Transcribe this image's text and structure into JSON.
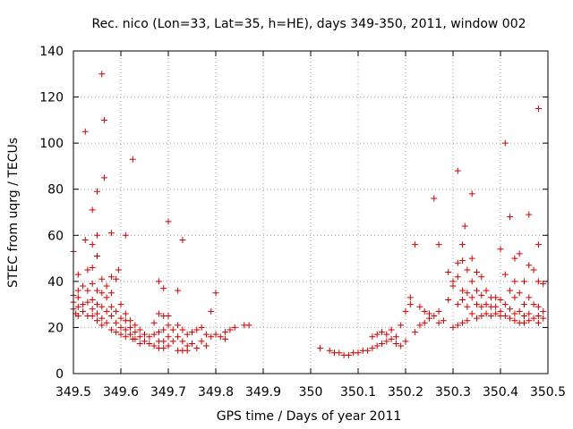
{
  "chart_data": {
    "type": "scatter",
    "title": "Rec. nico (Lon=33, Lat=35, h=HE), days 349-350, 2011, window 002",
    "xlabel": "GPS time / Days of year 2011",
    "ylabel": "STEC from uqrg / TECUs",
    "xlim": [
      349.5,
      350.5
    ],
    "ylim": [
      0,
      140
    ],
    "x_ticks": [
      349.5,
      349.6,
      349.7,
      349.8,
      349.9,
      350,
      350.1,
      350.2,
      350.3,
      350.4,
      350.5
    ],
    "x_tick_labels": [
      "349.5",
      "349.6",
      "349.7",
      "349.8",
      "349.9",
      "350",
      "350.1",
      "350.2",
      "350.3",
      "350.4",
      "350.5"
    ],
    "y_ticks": [
      0,
      20,
      40,
      60,
      80,
      100,
      120,
      140
    ],
    "y_tick_labels": [
      "0",
      "20",
      "40",
      "60",
      "80",
      "100",
      "120",
      "140"
    ],
    "grid": true,
    "marker": "+",
    "color": "#cc0000",
    "series": [
      {
        "points": [
          [
            349.5,
            53
          ],
          [
            349.5,
            34
          ],
          [
            349.5,
            31
          ],
          [
            349.5,
            28
          ],
          [
            349.505,
            26
          ],
          [
            349.51,
            43
          ],
          [
            349.51,
            36
          ],
          [
            349.51,
            33
          ],
          [
            349.51,
            29
          ],
          [
            349.51,
            25
          ],
          [
            349.52,
            38
          ],
          [
            349.52,
            30
          ],
          [
            349.52,
            27
          ],
          [
            349.525,
            105
          ],
          [
            349.525,
            58
          ],
          [
            349.53,
            45
          ],
          [
            349.53,
            36
          ],
          [
            349.53,
            31
          ],
          [
            349.53,
            25
          ],
          [
            349.54,
            71
          ],
          [
            349.54,
            56
          ],
          [
            349.54,
            46
          ],
          [
            349.54,
            39
          ],
          [
            349.54,
            32
          ],
          [
            349.54,
            28
          ],
          [
            349.54,
            25
          ],
          [
            349.55,
            79
          ],
          [
            349.55,
            60
          ],
          [
            349.55,
            51
          ],
          [
            349.55,
            36
          ],
          [
            349.55,
            30
          ],
          [
            349.55,
            26
          ],
          [
            349.55,
            23
          ],
          [
            349.56,
            130
          ],
          [
            349.565,
            110
          ],
          [
            349.565,
            85
          ],
          [
            349.56,
            41
          ],
          [
            349.56,
            35
          ],
          [
            349.56,
            29
          ],
          [
            349.56,
            24
          ],
          [
            349.56,
            21
          ],
          [
            349.57,
            38
          ],
          [
            349.57,
            33
          ],
          [
            349.57,
            27
          ],
          [
            349.57,
            22
          ],
          [
            349.58,
            61
          ],
          [
            349.58,
            42
          ],
          [
            349.58,
            35
          ],
          [
            349.58,
            29
          ],
          [
            349.58,
            25
          ],
          [
            349.58,
            19
          ],
          [
            349.59,
            41
          ],
          [
            349.59,
            27
          ],
          [
            349.59,
            22
          ],
          [
            349.59,
            18
          ],
          [
            349.595,
            45
          ],
          [
            349.6,
            30
          ],
          [
            349.6,
            24
          ],
          [
            349.6,
            20
          ],
          [
            349.6,
            17
          ],
          [
            349.61,
            60
          ],
          [
            349.61,
            26
          ],
          [
            349.61,
            23
          ],
          [
            349.61,
            19
          ],
          [
            349.61,
            16
          ],
          [
            349.62,
            23
          ],
          [
            349.62,
            20
          ],
          [
            349.62,
            17
          ],
          [
            349.625,
            93
          ],
          [
            349.625,
            15
          ],
          [
            349.63,
            21
          ],
          [
            349.63,
            18
          ],
          [
            349.63,
            15
          ],
          [
            349.64,
            19
          ],
          [
            349.64,
            16
          ],
          [
            349.64,
            13
          ],
          [
            349.65,
            17
          ],
          [
            349.65,
            14
          ],
          [
            349.66,
            16
          ],
          [
            349.66,
            13
          ],
          [
            349.67,
            22
          ],
          [
            349.67,
            17
          ],
          [
            349.67,
            12
          ],
          [
            349.68,
            40
          ],
          [
            349.68,
            26
          ],
          [
            349.68,
            18
          ],
          [
            349.68,
            14
          ],
          [
            349.68,
            11
          ],
          [
            349.69,
            37
          ],
          [
            349.69,
            25
          ],
          [
            349.69,
            19
          ],
          [
            349.69,
            14
          ],
          [
            349.69,
            11
          ],
          [
            349.7,
            66
          ],
          [
            349.7,
            25
          ],
          [
            349.7,
            21
          ],
          [
            349.7,
            16
          ],
          [
            349.7,
            12
          ],
          [
            349.71,
            19
          ],
          [
            349.71,
            14
          ],
          [
            349.72,
            36
          ],
          [
            349.72,
            21
          ],
          [
            349.72,
            16
          ],
          [
            349.72,
            10
          ],
          [
            349.73,
            58
          ],
          [
            349.73,
            19
          ],
          [
            349.73,
            14
          ],
          [
            349.73,
            10
          ],
          [
            349.74,
            17
          ],
          [
            349.74,
            12
          ],
          [
            349.74,
            10
          ],
          [
            349.75,
            18
          ],
          [
            349.75,
            13
          ],
          [
            349.76,
            19
          ],
          [
            349.76,
            11
          ],
          [
            349.77,
            20
          ],
          [
            349.77,
            14
          ],
          [
            349.78,
            17
          ],
          [
            349.78,
            12
          ],
          [
            349.79,
            27
          ],
          [
            349.79,
            16
          ],
          [
            349.8,
            35
          ],
          [
            349.8,
            17
          ],
          [
            349.81,
            16
          ],
          [
            349.82,
            18
          ],
          [
            349.82,
            15
          ],
          [
            349.83,
            19
          ],
          [
            349.84,
            20
          ],
          [
            349.86,
            21
          ],
          [
            349.87,
            21
          ],
          [
            350.02,
            11
          ],
          [
            350.04,
            10
          ],
          [
            350.05,
            9
          ],
          [
            350.06,
            9
          ],
          [
            350.07,
            8
          ],
          [
            350.08,
            8
          ],
          [
            350.09,
            9
          ],
          [
            350.1,
            9
          ],
          [
            350.11,
            10
          ],
          [
            350.12,
            10
          ],
          [
            350.13,
            11
          ],
          [
            350.13,
            16
          ],
          [
            350.14,
            12
          ],
          [
            350.14,
            17
          ],
          [
            350.15,
            13
          ],
          [
            350.15,
            18
          ],
          [
            350.16,
            14
          ],
          [
            350.16,
            17
          ],
          [
            350.17,
            15
          ],
          [
            350.17,
            19
          ],
          [
            350.18,
            16
          ],
          [
            350.18,
            13
          ],
          [
            350.19,
            21
          ],
          [
            350.19,
            12
          ],
          [
            350.2,
            27
          ],
          [
            350.2,
            14
          ],
          [
            350.21,
            33
          ],
          [
            350.21,
            30
          ],
          [
            350.22,
            56
          ],
          [
            350.22,
            18
          ],
          [
            350.23,
            29
          ],
          [
            350.23,
            21
          ],
          [
            350.24,
            27
          ],
          [
            350.24,
            22
          ],
          [
            350.25,
            26
          ],
          [
            350.25,
            24
          ],
          [
            350.26,
            76
          ],
          [
            350.26,
            25
          ],
          [
            350.27,
            56
          ],
          [
            350.27,
            27
          ],
          [
            350.27,
            22
          ],
          [
            350.28,
            23
          ],
          [
            350.29,
            44
          ],
          [
            350.29,
            32
          ],
          [
            350.3,
            40
          ],
          [
            350.3,
            38
          ],
          [
            350.3,
            20
          ],
          [
            350.31,
            48
          ],
          [
            350.31,
            88
          ],
          [
            350.31,
            42
          ],
          [
            350.31,
            30
          ],
          [
            350.31,
            21
          ],
          [
            350.32,
            56
          ],
          [
            350.32,
            49
          ],
          [
            350.32,
            36
          ],
          [
            350.32,
            32
          ],
          [
            350.32,
            22
          ],
          [
            350.325,
            64
          ],
          [
            350.33,
            45
          ],
          [
            350.33,
            35
          ],
          [
            350.33,
            29
          ],
          [
            350.33,
            23
          ],
          [
            350.34,
            78
          ],
          [
            350.34,
            50
          ],
          [
            350.34,
            40
          ],
          [
            350.34,
            33
          ],
          [
            350.34,
            26
          ],
          [
            350.35,
            44
          ],
          [
            350.35,
            36
          ],
          [
            350.35,
            30
          ],
          [
            350.35,
            24
          ],
          [
            350.36,
            42
          ],
          [
            350.36,
            34
          ],
          [
            350.36,
            29
          ],
          [
            350.36,
            25
          ],
          [
            350.37,
            36
          ],
          [
            350.37,
            30
          ],
          [
            350.37,
            26
          ],
          [
            350.38,
            33
          ],
          [
            350.38,
            29
          ],
          [
            350.38,
            25
          ],
          [
            350.39,
            33
          ],
          [
            350.39,
            29
          ],
          [
            350.39,
            26
          ],
          [
            350.4,
            54
          ],
          [
            350.4,
            32
          ],
          [
            350.4,
            27
          ],
          [
            350.4,
            25
          ],
          [
            350.41,
            100
          ],
          [
            350.41,
            43
          ],
          [
            350.41,
            30
          ],
          [
            350.41,
            25
          ],
          [
            350.42,
            68
          ],
          [
            350.42,
            36
          ],
          [
            350.42,
            28
          ],
          [
            350.42,
            24
          ],
          [
            350.43,
            50
          ],
          [
            350.43,
            40
          ],
          [
            350.43,
            33
          ],
          [
            350.43,
            26
          ],
          [
            350.43,
            23
          ],
          [
            350.44,
            52
          ],
          [
            350.44,
            35
          ],
          [
            350.44,
            27
          ],
          [
            350.44,
            22
          ],
          [
            350.45,
            40
          ],
          [
            350.45,
            30
          ],
          [
            350.45,
            25
          ],
          [
            350.45,
            22
          ],
          [
            350.46,
            69
          ],
          [
            350.46,
            47
          ],
          [
            350.46,
            33
          ],
          [
            350.46,
            26
          ],
          [
            350.46,
            23
          ],
          [
            350.47,
            45
          ],
          [
            350.47,
            30
          ],
          [
            350.47,
            24
          ],
          [
            350.48,
            115
          ],
          [
            350.48,
            56
          ],
          [
            350.48,
            40
          ],
          [
            350.48,
            29
          ],
          [
            350.48,
            25
          ],
          [
            350.48,
            22
          ],
          [
            350.49,
            39
          ],
          [
            350.49,
            27
          ],
          [
            350.49,
            24
          ]
        ]
      }
    ]
  }
}
